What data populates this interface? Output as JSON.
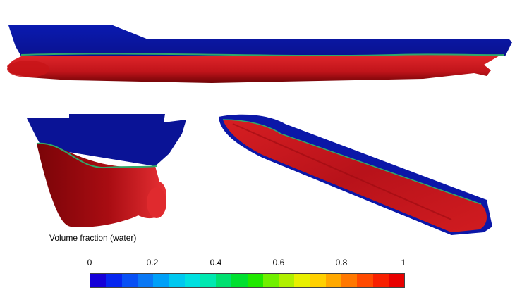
{
  "legend": {
    "title": "Volume fraction (water)",
    "ticks": [
      "0",
      "0.2",
      "0.4",
      "0.6",
      "0.8",
      "1"
    ],
    "range": [
      0,
      1
    ],
    "segments": [
      "#1500d8",
      "#0626f0",
      "#0850f5",
      "#0a78f5",
      "#00a0f8",
      "#00c8f0",
      "#00e0e0",
      "#00e8b0",
      "#00e070",
      "#00e030",
      "#20e800",
      "#70f000",
      "#b0f000",
      "#e8f000",
      "#ffd000",
      "#ffa800",
      "#ff7800",
      "#ff4a00",
      "#f82000",
      "#e80000"
    ]
  },
  "colors": {
    "air": "#0b17a8",
    "water": "#c8151a",
    "water_dark": "#7a0408",
    "interface": "#2fa86a"
  }
}
